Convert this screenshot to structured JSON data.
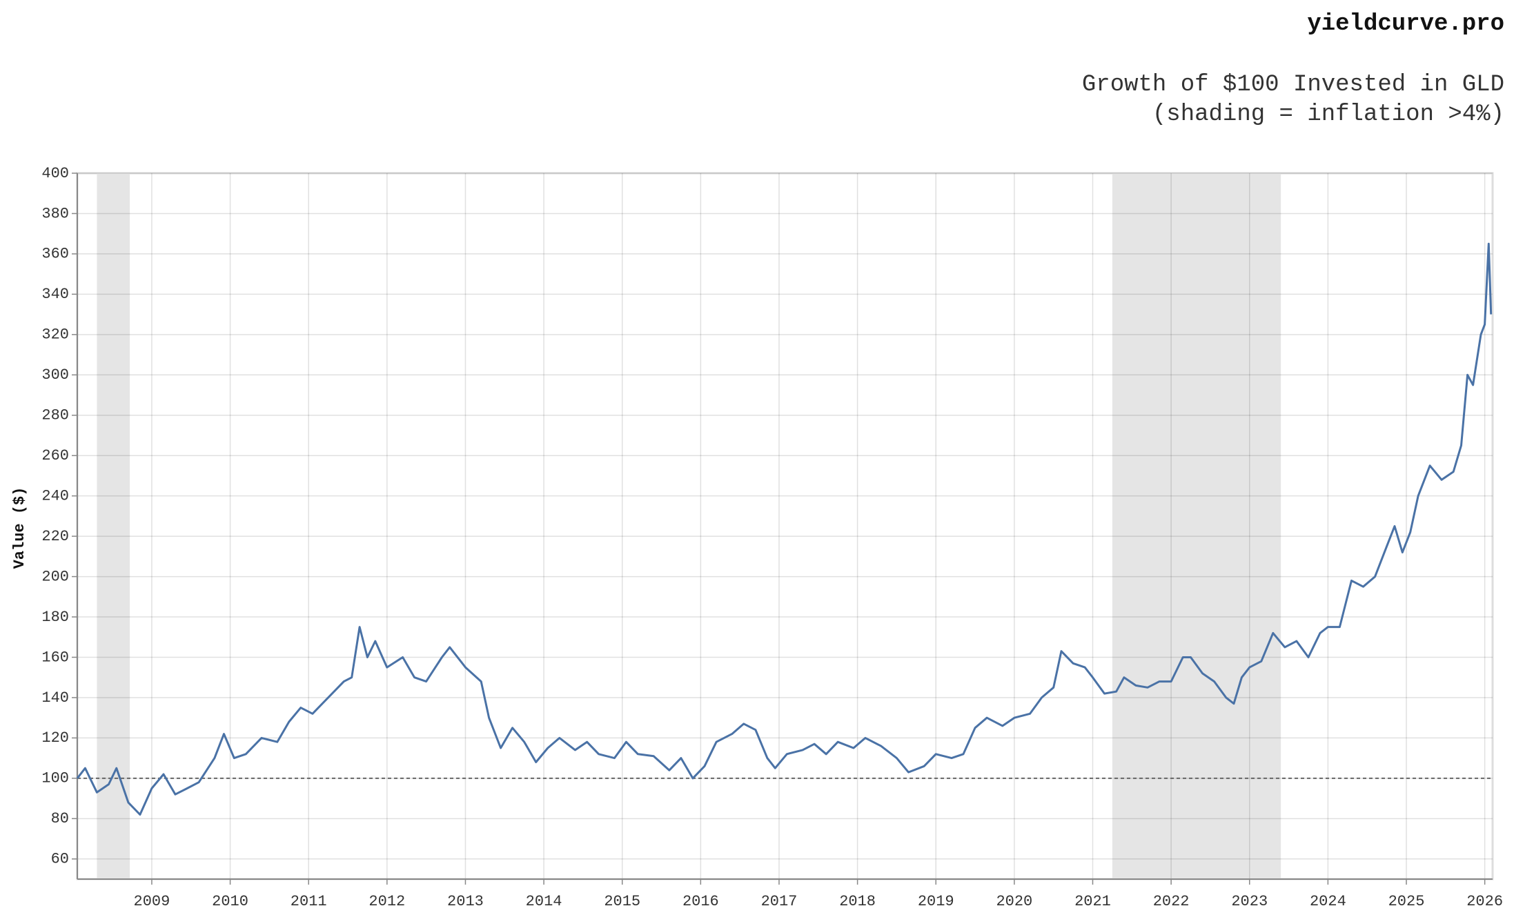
{
  "chart_data": {
    "type": "line",
    "site": "yieldcurve.pro",
    "title": "Growth of $100 Invested in GLD",
    "subtitle": "(shading = inflation >4%)",
    "y_label": "Value ($)",
    "xlim": [
      2008.05,
      2026.1
    ],
    "xticks": [
      2009,
      2010,
      2011,
      2012,
      2013,
      2014,
      2015,
      2016,
      2017,
      2018,
      2019,
      2020,
      2021,
      2022,
      2023,
      2024,
      2025,
      2026
    ],
    "ylim": [
      50,
      400
    ],
    "yticks": [
      60,
      80,
      100,
      120,
      140,
      160,
      180,
      200,
      220,
      240,
      260,
      280,
      300,
      320,
      340,
      360,
      380,
      400
    ],
    "grid": true,
    "reference_line": 100,
    "shading": [
      [
        2008.3,
        2008.72
      ],
      [
        2021.25,
        2023.4
      ]
    ],
    "series": [
      {
        "color": "#4a72a6",
        "x": [
          2008.05,
          2008.15,
          2008.3,
          2008.45,
          2008.55,
          2008.7,
          2008.85,
          2009.0,
          2009.15,
          2009.3,
          2009.45,
          2009.6,
          2009.8,
          2009.92,
          2010.05,
          2010.2,
          2010.4,
          2010.6,
          2010.75,
          2010.9,
          2011.05,
          2011.25,
          2011.45,
          2011.55,
          2011.65,
          2011.75,
          2011.85,
          2012.0,
          2012.2,
          2012.35,
          2012.5,
          2012.7,
          2012.8,
          2013.0,
          2013.2,
          2013.3,
          2013.45,
          2013.6,
          2013.75,
          2013.9,
          2014.05,
          2014.2,
          2014.4,
          2014.55,
          2014.7,
          2014.9,
          2015.05,
          2015.2,
          2015.4,
          2015.6,
          2015.75,
          2015.9,
          2016.05,
          2016.2,
          2016.4,
          2016.55,
          2016.7,
          2016.85,
          2016.95,
          2017.1,
          2017.3,
          2017.45,
          2017.6,
          2017.75,
          2017.95,
          2018.1,
          2018.3,
          2018.5,
          2018.65,
          2018.85,
          2019.0,
          2019.2,
          2019.35,
          2019.5,
          2019.65,
          2019.85,
          2020.0,
          2020.2,
          2020.35,
          2020.5,
          2020.6,
          2020.75,
          2020.9,
          2021.0,
          2021.15,
          2021.3,
          2021.4,
          2021.55,
          2021.7,
          2021.85,
          2022.0,
          2022.15,
          2022.25,
          2022.4,
          2022.55,
          2022.7,
          2022.8,
          2022.9,
          2023.0,
          2023.15,
          2023.3,
          2023.45,
          2023.6,
          2023.75,
          2023.9,
          2024.0,
          2024.15,
          2024.3,
          2024.45,
          2024.6,
          2024.75,
          2024.85,
          2024.95,
          2025.05,
          2025.15,
          2025.3,
          2025.45,
          2025.6,
          2025.7,
          2025.78,
          2025.85,
          2025.95,
          2026.0,
          2026.05,
          2026.08
        ],
        "values": [
          100,
          105,
          93,
          97,
          105,
          88,
          82,
          95,
          102,
          92,
          95,
          98,
          110,
          122,
          110,
          112,
          120,
          118,
          128,
          135,
          132,
          140,
          148,
          150,
          175,
          160,
          168,
          155,
          160,
          150,
          148,
          160,
          165,
          155,
          148,
          130,
          115,
          125,
          118,
          108,
          115,
          120,
          114,
          118,
          112,
          110,
          118,
          112,
          111,
          104,
          110,
          100,
          106,
          118,
          122,
          127,
          124,
          110,
          105,
          112,
          114,
          117,
          112,
          118,
          115,
          120,
          116,
          110,
          103,
          106,
          112,
          110,
          112,
          125,
          130,
          126,
          130,
          132,
          140,
          145,
          163,
          157,
          155,
          150,
          142,
          143,
          150,
          146,
          145,
          148,
          148,
          160,
          160,
          152,
          148,
          140,
          137,
          150,
          155,
          158,
          172,
          165,
          168,
          160,
          172,
          175,
          175,
          198,
          195,
          200,
          215,
          225,
          212,
          222,
          240,
          255,
          248,
          252,
          265,
          300,
          295,
          320,
          325,
          365,
          330
        ]
      }
    ]
  }
}
